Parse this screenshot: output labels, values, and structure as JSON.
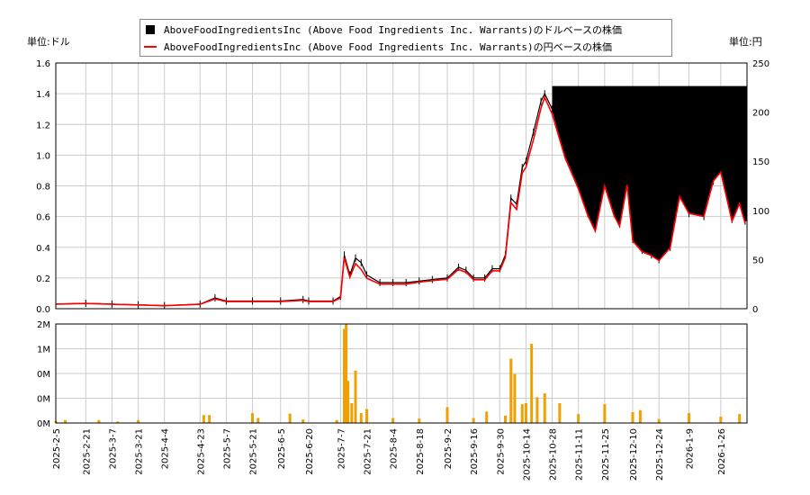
{
  "units": {
    "left": "単位:ドル",
    "right": "単位:円"
  },
  "legend": [
    {
      "label": "AboveFoodIngredientsInc (Above Food Ingredients Inc. Warrants)のドルベースの株価",
      "color": "#000000",
      "kind": "box"
    },
    {
      "label": "AboveFoodIngredientsInc (Above Food Ingredients Inc. Warrants)の円ベースの株価",
      "color": "#ff0000",
      "kind": "line"
    }
  ],
  "chart_data": {
    "type": "line",
    "price_axis_left": {
      "unit": "ドル",
      "min": 0,
      "max": 1.6,
      "ticks": [
        "0.0",
        "0.2",
        "0.4",
        "0.6",
        "0.8",
        "1.0",
        "1.2",
        "1.4",
        "1.6"
      ]
    },
    "price_axis_right": {
      "unit": "円",
      "min": 0,
      "max": 250,
      "ticks": [
        "0",
        "50",
        "100",
        "150",
        "200",
        "250"
      ]
    },
    "volume_axis": {
      "min": 0,
      "max": 2000000,
      "ticks": [
        "0M",
        "0M",
        "0M",
        "1M",
        "2M"
      ]
    },
    "x_ticks": [
      "2025-2-5",
      "2025-2-21",
      "2025-3-7",
      "2025-3-21",
      "2025-4-4",
      "2025-4-23",
      "2025-5-7",
      "2025-5-21",
      "2025-6-5",
      "2025-6-20",
      "2025-7-7",
      "2025-7-21",
      "2025-8-4",
      "2025-8-18",
      "2025-9-2",
      "2025-9-16",
      "2025-9-30",
      "2025-10-14",
      "2025-10-28",
      "2025-11-11",
      "2025-11-25",
      "2025-12-10",
      "2025-12-24",
      "2026-1-9",
      "2026-1-26"
    ],
    "grid": true,
    "series": [
      {
        "name": "ドルベース",
        "color": "#000000",
        "values": [
          [
            "2025-02-05",
            0.03
          ],
          [
            "2025-02-21",
            0.035
          ],
          [
            "2025-03-07",
            0.03
          ],
          [
            "2025-03-21",
            0.025
          ],
          [
            "2025-04-04",
            0.02
          ],
          [
            "2025-04-23",
            0.03
          ],
          [
            "2025-05-01",
            0.07
          ],
          [
            "2025-05-07",
            0.05
          ],
          [
            "2025-05-21",
            0.05
          ],
          [
            "2025-06-05",
            0.05
          ],
          [
            "2025-06-17",
            0.06
          ],
          [
            "2025-06-20",
            0.05
          ],
          [
            "2025-07-03",
            0.05
          ],
          [
            "2025-07-07",
            0.08
          ],
          [
            "2025-07-09",
            0.35
          ],
          [
            "2025-07-12",
            0.22
          ],
          [
            "2025-07-15",
            0.33
          ],
          [
            "2025-07-18",
            0.3
          ],
          [
            "2025-07-21",
            0.22
          ],
          [
            "2025-07-28",
            0.17
          ],
          [
            "2025-08-04",
            0.17
          ],
          [
            "2025-08-11",
            0.17
          ],
          [
            "2025-08-18",
            0.18
          ],
          [
            "2025-08-25",
            0.19
          ],
          [
            "2025-09-02",
            0.2
          ],
          [
            "2025-09-08",
            0.27
          ],
          [
            "2025-09-12",
            0.25
          ],
          [
            "2025-09-16",
            0.2
          ],
          [
            "2025-09-22",
            0.2
          ],
          [
            "2025-09-26",
            0.26
          ],
          [
            "2025-09-30",
            0.26
          ],
          [
            "2025-10-03",
            0.35
          ],
          [
            "2025-10-06",
            0.72
          ],
          [
            "2025-10-09",
            0.68
          ],
          [
            "2025-10-12",
            0.92
          ],
          [
            "2025-10-14",
            0.96
          ],
          [
            "2025-10-18",
            1.15
          ],
          [
            "2025-10-22",
            1.35
          ],
          [
            "2025-10-24",
            1.4
          ],
          [
            "2025-10-28",
            1.3
          ],
          [
            "2025-11-04",
            1.0
          ],
          [
            "2025-11-11",
            0.8
          ],
          [
            "2025-11-16",
            0.62
          ],
          [
            "2025-11-20",
            0.52
          ],
          [
            "2025-11-25",
            0.82
          ],
          [
            "2025-11-30",
            0.62
          ],
          [
            "2025-12-03",
            0.55
          ],
          [
            "2025-12-07",
            0.82
          ],
          [
            "2025-12-10",
            0.45
          ],
          [
            "2025-12-15",
            0.38
          ],
          [
            "2025-12-20",
            0.35
          ],
          [
            "2025-12-24",
            0.32
          ],
          [
            "2025-12-30",
            0.4
          ],
          [
            "2026-01-04",
            0.74
          ],
          [
            "2026-01-09",
            0.62
          ],
          [
            "2026-01-17",
            0.6
          ],
          [
            "2026-01-22",
            0.83
          ],
          [
            "2026-01-26",
            0.9
          ],
          [
            "2026-02-01",
            0.58
          ],
          [
            "2026-02-05",
            0.7
          ],
          [
            "2026-02-08",
            0.57
          ]
        ]
      },
      {
        "name": "円ベース",
        "color": "#ff0000",
        "values": [
          [
            "2025-02-05",
            4.6
          ],
          [
            "2025-02-21",
            5.3
          ],
          [
            "2025-03-07",
            4.5
          ],
          [
            "2025-03-21",
            3.8
          ],
          [
            "2025-04-04",
            3.0
          ],
          [
            "2025-04-23",
            4.5
          ],
          [
            "2025-05-01",
            10.0
          ],
          [
            "2025-05-07",
            7.3
          ],
          [
            "2025-05-21",
            7.3
          ],
          [
            "2025-06-05",
            7.3
          ],
          [
            "2025-06-17",
            8.5
          ],
          [
            "2025-06-20",
            7.3
          ],
          [
            "2025-07-03",
            7.3
          ],
          [
            "2025-07-07",
            11.0
          ],
          [
            "2025-07-09",
            52.0
          ],
          [
            "2025-07-12",
            32.0
          ],
          [
            "2025-07-15",
            46.0
          ],
          [
            "2025-07-18",
            40.0
          ],
          [
            "2025-07-21",
            31.0
          ],
          [
            "2025-07-28",
            25.0
          ],
          [
            "2025-08-04",
            25.0
          ],
          [
            "2025-08-11",
            25.0
          ],
          [
            "2025-08-18",
            27.0
          ],
          [
            "2025-08-25",
            28.5
          ],
          [
            "2025-09-02",
            30.0
          ],
          [
            "2025-09-08",
            40.0
          ],
          [
            "2025-09-12",
            37.0
          ],
          [
            "2025-09-16",
            29.5
          ],
          [
            "2025-09-22",
            29.5
          ],
          [
            "2025-09-26",
            38.5
          ],
          [
            "2025-09-30",
            38.5
          ],
          [
            "2025-10-03",
            52.0
          ],
          [
            "2025-10-06",
            108.0
          ],
          [
            "2025-10-09",
            101.0
          ],
          [
            "2025-10-12",
            138.0
          ],
          [
            "2025-10-14",
            144.0
          ],
          [
            "2025-10-18",
            172.0
          ],
          [
            "2025-10-22",
            204.0
          ],
          [
            "2025-10-24",
            215.0
          ],
          [
            "2025-10-28",
            198.0
          ],
          [
            "2025-11-04",
            153.0
          ],
          [
            "2025-11-11",
            122.0
          ],
          [
            "2025-11-16",
            95.0
          ],
          [
            "2025-11-20",
            79.0
          ],
          [
            "2025-11-25",
            125.0
          ],
          [
            "2025-11-30",
            95.0
          ],
          [
            "2025-12-03",
            84.0
          ],
          [
            "2025-12-07",
            126.0
          ],
          [
            "2025-12-10",
            69.0
          ],
          [
            "2025-12-15",
            58.0
          ],
          [
            "2025-12-20",
            54.0
          ],
          [
            "2025-12-24",
            49.0
          ],
          [
            "2025-12-30",
            62.0
          ],
          [
            "2026-01-04",
            114.0
          ],
          [
            "2026-01-09",
            97.0
          ],
          [
            "2026-01-17",
            94.0
          ],
          [
            "2026-01-22",
            130.0
          ],
          [
            "2026-01-26",
            139.0
          ],
          [
            "2026-02-01",
            89.0
          ],
          [
            "2026-02-05",
            107.0
          ],
          [
            "2026-02-08",
            87.0
          ]
        ]
      }
    ],
    "band_upper_usd": 1.45,
    "volume": [
      [
        "2025-02-05",
        40000
      ],
      [
        "2025-02-10",
        60000
      ],
      [
        "2025-02-28",
        60000
      ],
      [
        "2025-03-10",
        30000
      ],
      [
        "2025-03-21",
        60000
      ],
      [
        "2025-04-25",
        160000
      ],
      [
        "2025-04-28",
        160000
      ],
      [
        "2025-05-21",
        200000
      ],
      [
        "2025-05-24",
        100000
      ],
      [
        "2025-06-10",
        190000
      ],
      [
        "2025-06-17",
        70000
      ],
      [
        "2025-07-05",
        60000
      ],
      [
        "2025-07-09",
        1900000
      ],
      [
        "2025-07-10",
        2000000
      ],
      [
        "2025-07-11",
        850000
      ],
      [
        "2025-07-13",
        400000
      ],
      [
        "2025-07-15",
        1060000
      ],
      [
        "2025-07-18",
        200000
      ],
      [
        "2025-07-21",
        280000
      ],
      [
        "2025-08-04",
        100000
      ],
      [
        "2025-08-18",
        90000
      ],
      [
        "2025-09-02",
        320000
      ],
      [
        "2025-09-16",
        100000
      ],
      [
        "2025-09-23",
        230000
      ],
      [
        "2025-10-03",
        150000
      ],
      [
        "2025-10-06",
        1300000
      ],
      [
        "2025-10-08",
        990000
      ],
      [
        "2025-10-12",
        380000
      ],
      [
        "2025-10-14",
        400000
      ],
      [
        "2025-10-17",
        1600000
      ],
      [
        "2025-10-20",
        520000
      ],
      [
        "2025-10-24",
        600000
      ],
      [
        "2025-11-01",
        400000
      ],
      [
        "2025-11-11",
        180000
      ],
      [
        "2025-11-25",
        380000
      ],
      [
        "2025-12-10",
        220000
      ],
      [
        "2025-12-14",
        260000
      ],
      [
        "2025-12-24",
        80000
      ],
      [
        "2026-01-09",
        200000
      ],
      [
        "2026-01-26",
        130000
      ],
      [
        "2026-02-05",
        180000
      ]
    ]
  }
}
